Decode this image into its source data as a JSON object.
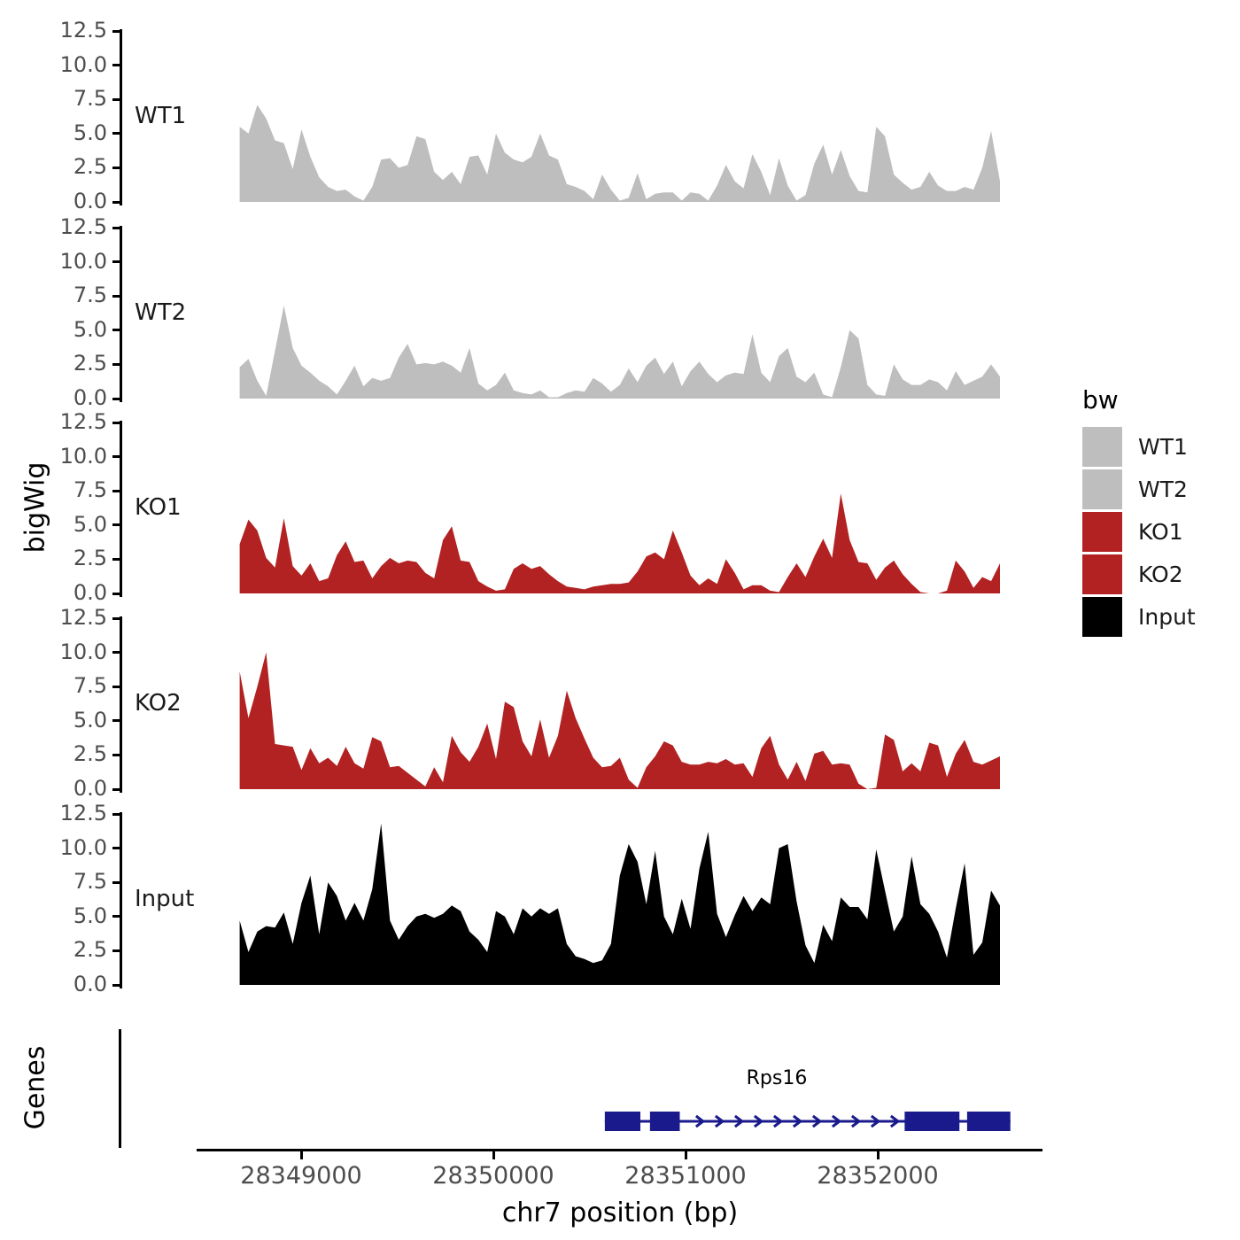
{
  "figure": {
    "y_axis_label": "bigWig",
    "genes_axis_label": "Genes",
    "legend": {
      "title": "bw",
      "items": [
        {
          "label": "WT1",
          "color": "#BEBEBE"
        },
        {
          "label": "WT2",
          "color": "#BEBEBE"
        },
        {
          "label": "KO1",
          "color": "#B22222"
        },
        {
          "label": "KO2",
          "color": "#B22222"
        },
        {
          "label": "Input",
          "color": "#000000"
        }
      ]
    }
  },
  "chart_data": {
    "type": "area",
    "title": "",
    "facet_variable": "bw",
    "x_axis": {
      "label": "chr7 position (bp)",
      "ticks": [
        28349000,
        28350000,
        28351000,
        28352000
      ],
      "range": [
        28348460,
        28352860
      ]
    },
    "y_axis": {
      "label": "bigWig",
      "tick_labels": [
        "0.0",
        "2.5",
        "5.0",
        "7.5",
        "10.0",
        "12.5"
      ],
      "tick_values": [
        0,
        2.5,
        5,
        7.5,
        10,
        12.5
      ],
      "range": [
        0,
        12.5
      ]
    },
    "x_start_bp": 28348680,
    "x_step_bp": 46,
    "series": [
      {
        "name": "WT1",
        "color": "#BEBEBE",
        "values": [
          5.5,
          5.0,
          7.1,
          6.1,
          4.5,
          4.3,
          2.4,
          5.3,
          3.3,
          1.8,
          1.1,
          0.8,
          0.9,
          0.4,
          0.1,
          1.1,
          3.1,
          3.2,
          2.5,
          2.7,
          4.8,
          4.6,
          2.2,
          1.6,
          2.2,
          1.3,
          3.3,
          3.4,
          2.0,
          5.0,
          3.6,
          3.1,
          2.9,
          3.3,
          5.0,
          3.4,
          3.1,
          1.3,
          1.1,
          0.8,
          0.2,
          2.0,
          0.9,
          0.1,
          0.3,
          2.1,
          0.2,
          0.6,
          0.7,
          0.7,
          0.1,
          0.7,
          0.6,
          0.1,
          1.2,
          2.7,
          1.5,
          1.0,
          3.5,
          2.2,
          0.5,
          3.2,
          1.2,
          0.1,
          0.5,
          2.8,
          4.2,
          2.0,
          3.8,
          1.9,
          0.8,
          0.7,
          5.5,
          4.8,
          2.0,
          1.4,
          0.9,
          1.1,
          2.2,
          1.2,
          0.8,
          0.8,
          1.1,
          0.9,
          2.5,
          5.2,
          1.5
        ]
      },
      {
        "name": "WT2",
        "color": "#BEBEBE",
        "values": [
          2.3,
          2.9,
          1.3,
          0.2,
          3.5,
          6.8,
          3.7,
          2.4,
          1.9,
          1.3,
          0.9,
          0.3,
          1.3,
          2.4,
          0.9,
          1.5,
          1.3,
          1.5,
          3.0,
          4.0,
          2.5,
          2.6,
          2.5,
          2.7,
          2.4,
          1.9,
          3.7,
          1.1,
          0.6,
          1.0,
          1.9,
          0.6,
          0.4,
          0.3,
          0.6,
          0.1,
          0.1,
          0.4,
          0.6,
          0.5,
          1.5,
          1.1,
          0.5,
          1.0,
          2.2,
          1.2,
          2.4,
          3.0,
          1.8,
          2.7,
          0.9,
          2.0,
          2.7,
          1.8,
          1.2,
          1.7,
          1.9,
          1.8,
          4.7,
          1.9,
          1.2,
          3.1,
          3.7,
          1.6,
          1.2,
          1.9,
          0.3,
          0.1,
          2.3,
          5.0,
          4.4,
          1.0,
          0.3,
          0.2,
          2.5,
          1.4,
          1.0,
          1.0,
          1.4,
          1.2,
          0.6,
          2.0,
          1.0,
          1.3,
          1.6,
          2.5,
          1.6
        ]
      },
      {
        "name": "KO1",
        "color": "#B22222",
        "values": [
          3.6,
          5.4,
          4.6,
          2.6,
          1.9,
          5.5,
          2.0,
          1.3,
          2.2,
          0.9,
          1.1,
          2.8,
          3.8,
          2.3,
          2.4,
          1.1,
          2.0,
          2.6,
          2.2,
          2.4,
          2.3,
          1.5,
          1.1,
          3.9,
          4.9,
          2.4,
          2.3,
          0.9,
          0.5,
          0.2,
          0.3,
          1.8,
          2.2,
          1.8,
          2.0,
          1.4,
          0.9,
          0.5,
          0.4,
          0.3,
          0.5,
          0.6,
          0.7,
          0.7,
          0.8,
          1.6,
          2.7,
          3.0,
          2.5,
          4.6,
          3.0,
          1.3,
          0.6,
          1.1,
          0.7,
          2.5,
          1.5,
          0.3,
          0.6,
          0.6,
          0.2,
          0.1,
          1.2,
          2.2,
          1.2,
          2.7,
          4.0,
          2.6,
          7.3,
          3.9,
          2.3,
          2.2,
          1.0,
          1.9,
          2.4,
          1.4,
          0.7,
          0.1,
          0.0,
          0.0,
          0.2,
          2.4,
          1.6,
          0.4,
          1.2,
          0.9,
          2.2
        ]
      },
      {
        "name": "KO2",
        "color": "#B22222",
        "values": [
          8.6,
          5.2,
          7.5,
          10.0,
          3.3,
          3.2,
          3.1,
          1.4,
          3.0,
          1.9,
          2.3,
          1.7,
          3.1,
          1.9,
          1.5,
          3.8,
          3.5,
          1.6,
          1.7,
          1.2,
          0.7,
          0.2,
          1.6,
          0.5,
          3.9,
          2.7,
          2.0,
          3.1,
          4.8,
          2.2,
          6.4,
          6.0,
          3.5,
          2.4,
          5.1,
          2.3,
          3.9,
          7.2,
          5.2,
          3.7,
          2.3,
          1.6,
          1.7,
          2.3,
          0.7,
          0.1,
          1.6,
          2.4,
          3.5,
          3.2,
          2.0,
          1.8,
          1.8,
          2.0,
          1.9,
          2.2,
          1.8,
          1.9,
          0.9,
          3.0,
          3.9,
          1.8,
          0.7,
          2.0,
          0.6,
          2.6,
          2.8,
          1.8,
          1.9,
          1.8,
          0.4,
          0.0,
          0.1,
          4.0,
          3.6,
          1.3,
          1.9,
          1.3,
          3.4,
          3.2,
          0.9,
          2.6,
          3.6,
          2.0,
          1.8,
          2.1,
          2.4
        ]
      },
      {
        "name": "Input",
        "color": "#000000",
        "values": [
          4.7,
          2.4,
          3.9,
          4.3,
          4.2,
          5.3,
          3.0,
          6.0,
          8.0,
          3.7,
          7.5,
          6.5,
          4.7,
          6.0,
          4.7,
          7.0,
          11.8,
          4.7,
          3.3,
          4.3,
          5.0,
          5.2,
          4.9,
          5.2,
          5.8,
          5.4,
          3.9,
          3.3,
          2.4,
          5.4,
          5.0,
          3.7,
          5.6,
          5.0,
          5.6,
          5.2,
          5.6,
          3.0,
          2.1,
          1.9,
          1.6,
          1.8,
          3.0,
          8.0,
          10.3,
          9.0,
          5.9,
          9.8,
          5.0,
          3.7,
          6.3,
          4.1,
          8.5,
          11.2,
          5.2,
          3.5,
          5.1,
          6.5,
          5.4,
          6.4,
          5.9,
          10.0,
          10.3,
          6.1,
          2.9,
          1.6,
          4.4,
          3.2,
          6.4,
          5.7,
          5.7,
          4.8,
          9.9,
          6.9,
          3.9,
          5.0,
          9.4,
          5.9,
          5.2,
          3.9,
          2.0,
          5.6,
          8.9,
          2.2,
          3.1,
          6.9,
          5.8
        ]
      }
    ],
    "gene_track": {
      "label": "Genes",
      "gene": {
        "name": "Rps16",
        "strand": "+",
        "color": "#1A1A8C",
        "start_bp": 28350580,
        "end_bp": 28352690,
        "exons_bp": [
          [
            28350580,
            28350765
          ],
          [
            28350815,
            28350970
          ],
          [
            28352140,
            28352425
          ],
          [
            28352465,
            28352690
          ]
        ]
      }
    }
  }
}
